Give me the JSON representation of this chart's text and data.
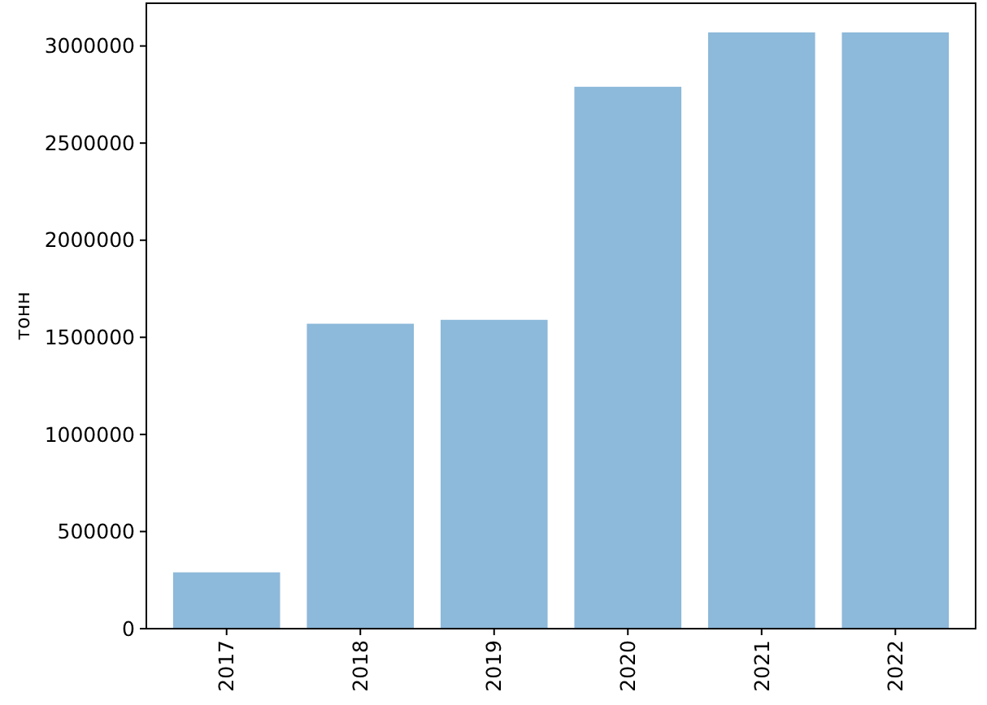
{
  "chart_data": {
    "type": "bar",
    "ylabel": "тонн",
    "categories": [
      "2017",
      "2018",
      "2019",
      "2020",
      "2021",
      "2022"
    ],
    "values": [
      290000,
      1570000,
      1590000,
      2790000,
      3070000,
      3070000
    ],
    "color": "#8db9da",
    "ylim": [
      0,
      3220000
    ],
    "yticks": [
      0,
      500000,
      1000000,
      1500000,
      2000000,
      2500000,
      3000000
    ],
    "grid": false
  }
}
